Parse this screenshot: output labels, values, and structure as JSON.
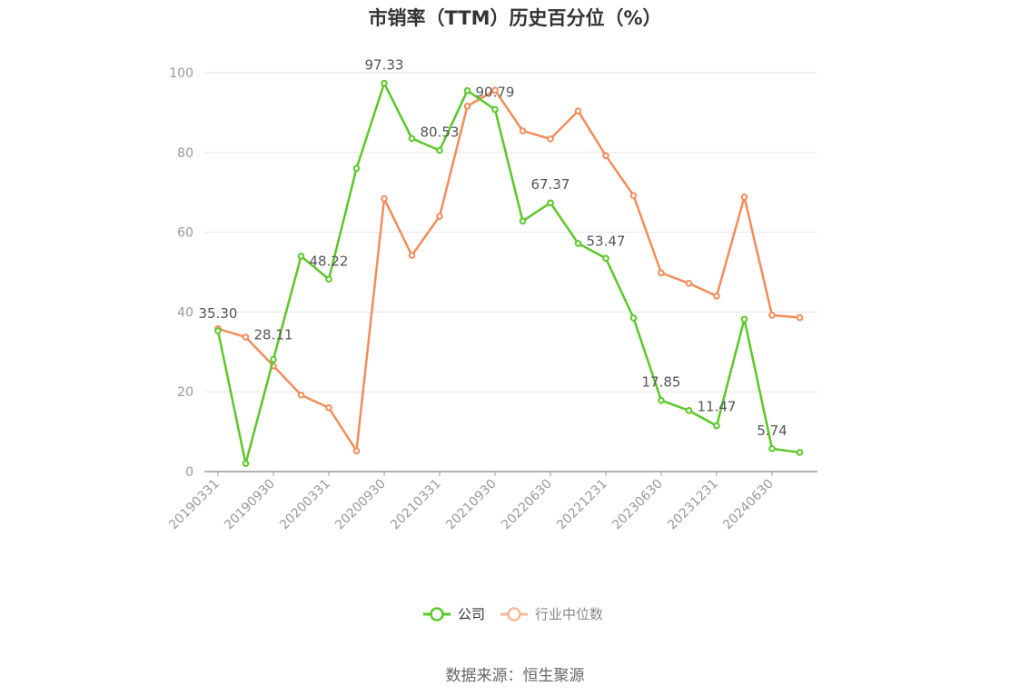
{
  "title": "市销率（TTM）历史百分位（%）",
  "source": "数据来源：恒生聚源",
  "colors": {
    "company": "#5ac828",
    "industry": "#f28c5a",
    "industry_legend": "#f8b89a",
    "grid": "#e6e6ee",
    "axis": "#999999"
  },
  "chart_data": {
    "type": "line",
    "title": "市销率（TTM）历史百分位（%）",
    "xlabel": "",
    "ylabel": "",
    "ylim": [
      0,
      100
    ],
    "yticks": [
      0,
      20,
      40,
      60,
      80,
      100
    ],
    "grid": true,
    "legend_position": "bottom",
    "x": [
      "20190331",
      "20190630",
      "20190930",
      "20191231",
      "20200331",
      "20200630",
      "20200930",
      "20201231",
      "20210331",
      "20210630",
      "20210930",
      "20211231",
      "20220630",
      "20220930",
      "20221231",
      "20230331",
      "20230630",
      "20230930",
      "20231231",
      "20240331",
      "20240630",
      "20240930"
    ],
    "x_tick_labels": [
      "20190331",
      "20190930",
      "20200331",
      "20200930",
      "20210331",
      "20210930",
      "20220630",
      "20221231",
      "20230630",
      "20231231",
      "20240630"
    ],
    "x_tick_indices": [
      0,
      2,
      4,
      6,
      8,
      10,
      12,
      14,
      16,
      18,
      20
    ],
    "series": [
      {
        "name": "公司",
        "values": [
          35.3,
          2.0,
          28.11,
          54.0,
          48.22,
          76.0,
          97.33,
          83.5,
          80.53,
          95.5,
          90.79,
          62.8,
          67.37,
          57.2,
          53.47,
          38.5,
          17.85,
          15.3,
          11.47,
          38.2,
          5.74,
          4.8
        ],
        "labels": {
          "0": "35.30",
          "2": "28.11",
          "4": "48.22",
          "6": "97.33",
          "8": "80.53",
          "10": "90.79",
          "12": "67.37",
          "14": "53.47",
          "16": "17.85",
          "18": "11.47",
          "20": "5.74"
        }
      },
      {
        "name": "行业中位数",
        "values": [
          35.8,
          33.7,
          26.5,
          19.2,
          16.0,
          5.2,
          68.4,
          54.2,
          64.0,
          91.6,
          95.6,
          85.4,
          83.4,
          90.4,
          79.2,
          69.2,
          49.8,
          47.2,
          44.0,
          68.8,
          39.2,
          38.6
        ]
      }
    ]
  }
}
